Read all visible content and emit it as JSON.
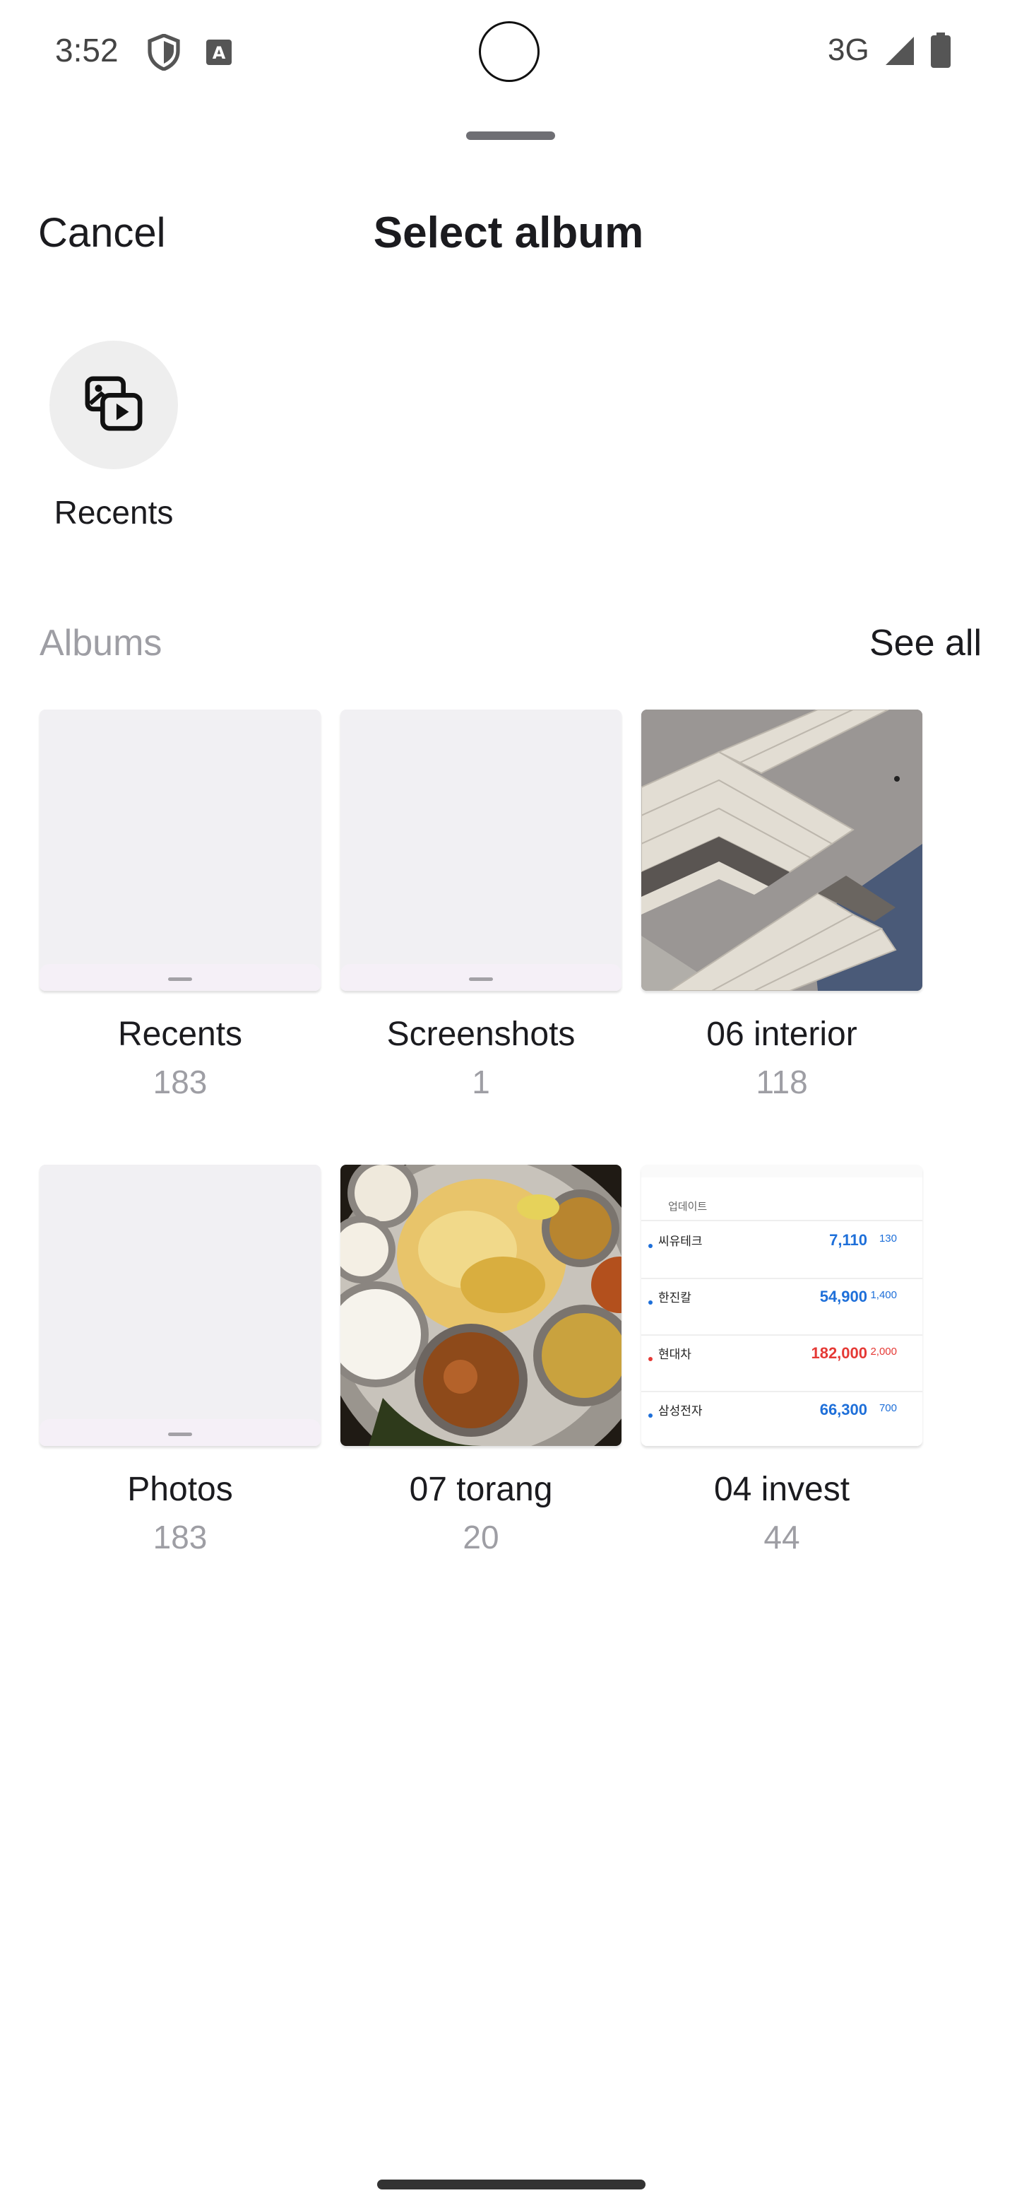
{
  "status_bar": {
    "time": "3:52",
    "network": "3G",
    "icons": [
      "shield-icon",
      "text-a-icon",
      "signal-icon",
      "battery-icon"
    ]
  },
  "sheet": {
    "cancel_label": "Cancel",
    "title": "Select album"
  },
  "recents_shortcut": {
    "label": "Recents",
    "icon": "photo-video-icon"
  },
  "albums_section": {
    "header": "Albums",
    "see_all_label": "See all",
    "albums": [
      {
        "name": "Recents",
        "count": "183",
        "thumbnail": "blank"
      },
      {
        "name": "Screenshots",
        "count": "1",
        "thumbnail": "blank"
      },
      {
        "name": "06 interior",
        "count": "118",
        "thumbnail": "herringbone-floor-photo"
      },
      {
        "name": "Photos",
        "count": "183",
        "thumbnail": "blank"
      },
      {
        "name": "07 torang",
        "count": "20",
        "thumbnail": "indian-food-platter-photo"
      },
      {
        "name": "04 invest",
        "count": "44",
        "thumbnail": "stock-list-screenshot"
      }
    ]
  },
  "stock_thumb": {
    "tab": "업데이트",
    "rows": [
      {
        "name": "씨유테크",
        "price": "7,110",
        "delta": "130",
        "trend": "down"
      },
      {
        "name": "한진칼",
        "price": "54,900",
        "delta": "1,400",
        "trend": "down"
      },
      {
        "name": "현대차",
        "price": "182,000",
        "delta": "2,000",
        "trend": "up"
      },
      {
        "name": "삼성전자",
        "price": "66,300",
        "delta": "700",
        "trend": "down"
      }
    ]
  },
  "colors": {
    "text_primary": "#1b1b1f",
    "text_secondary": "#9e9ea4",
    "placeholder_bg": "#f1f0f3",
    "stock_up": "#e53935",
    "stock_down": "#1e6fd9"
  }
}
